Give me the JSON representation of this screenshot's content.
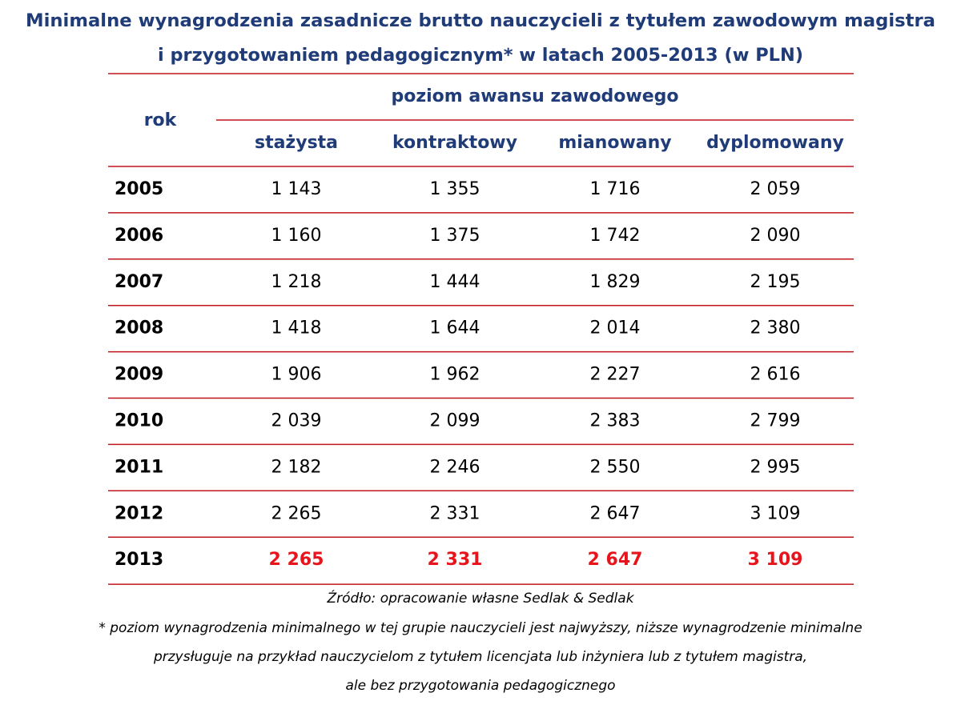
{
  "header": {
    "title": [
      "Minimalne wynagrodzenia zasadnicze brutto nauczycieli z tytułem zawodowym magistra",
      "i przygotowaniem pedagogicznym* w latach 2005-2013 (w PLN)"
    ]
  },
  "table": {
    "row_header": "rok",
    "group_header": "poziom awansu zawodowego",
    "columns": [
      "stażysta",
      "kontraktowy",
      "mianowany",
      "dyplomowany"
    ],
    "rows": [
      [
        "2005",
        "1 143",
        "1 355",
        "1 716",
        "2 059"
      ],
      [
        "2006",
        "1 160",
        "1 375",
        "1 742",
        "2 090"
      ],
      [
        "2007",
        "1 218",
        "1 444",
        "1 829",
        "2 195"
      ],
      [
        "2008",
        "1 418",
        "1 644",
        "2 014",
        "2 380"
      ],
      [
        "2009",
        "1 906",
        "1 962",
        "2 227",
        "2 616"
      ],
      [
        "2010",
        "2 039",
        "2 099",
        "2 383",
        "2 799"
      ],
      [
        "2011",
        "2 182",
        "2 246",
        "2 550",
        "2 995"
      ],
      [
        "2012",
        "2 265",
        "2 331",
        "2 647",
        "3 109"
      ],
      [
        "2013",
        "2 265",
        "2 331",
        "2 647",
        "3 109"
      ]
    ]
  },
  "footer": {
    "source": "Źródło: opracowanie własne Sedlak & Sedlak",
    "notes": [
      "* poziom wynagrodzenia minimalnego w tej grupie nauczycieli jest najwyższy, niższe wynagrodzenie minimalne",
      "przysługuje na przykład nauczycielom z tytułem licencjata lub inżyniera lub z tytułem magistra,",
      "ale bez przygotowania pedagogicznego"
    ]
  }
}
